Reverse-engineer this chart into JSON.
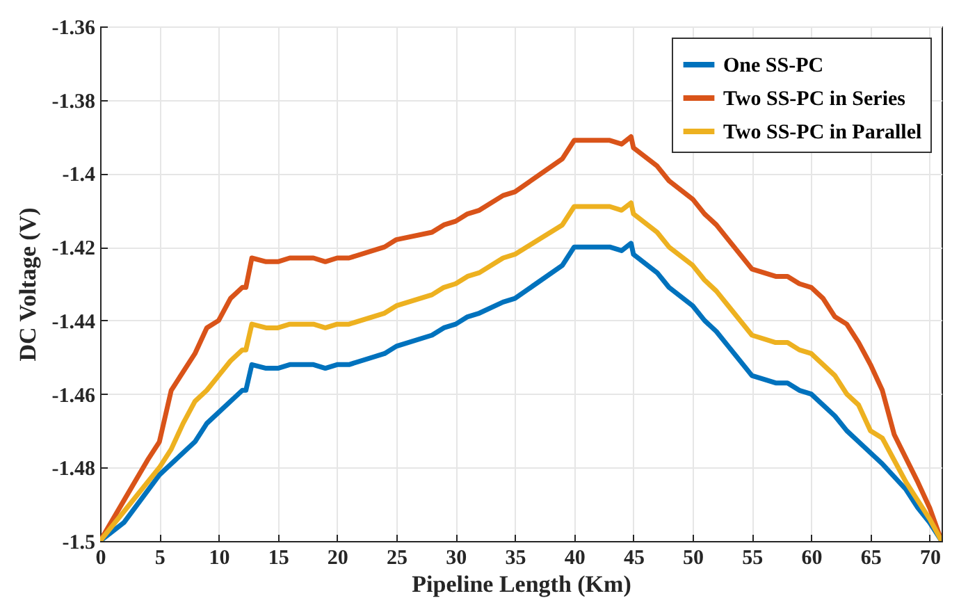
{
  "chart_data": {
    "type": "line",
    "xlabel": "Pipeline Length (Km)",
    "ylabel": "DC Voltage  (V)",
    "xlim": [
      0,
      71
    ],
    "ylim": [
      -1.5,
      -1.36
    ],
    "xticks": [
      0,
      5,
      10,
      15,
      20,
      25,
      30,
      35,
      40,
      45,
      50,
      55,
      60,
      65,
      70
    ],
    "yticks": [
      -1.5,
      -1.48,
      -1.46,
      -1.44,
      -1.42,
      -1.4,
      -1.38,
      -1.36
    ],
    "grid": true,
    "legend": "top right",
    "line_style": "solid",
    "marker": "none",
    "series": [
      {
        "name": "One SS-PC",
        "color": "#0072bd",
        "x": [
          0,
          2,
          5,
          6,
          8,
          9,
          12,
          12.3,
          12.8,
          14,
          15,
          16,
          18,
          19,
          20,
          21,
          24,
          25,
          28,
          29,
          30,
          31,
          32,
          34,
          35,
          39,
          40,
          43,
          44,
          44.8,
          45,
          47,
          48,
          50,
          51,
          52,
          53,
          55,
          57,
          58,
          59,
          60,
          62,
          63,
          64,
          66,
          68,
          69,
          70,
          71
        ],
        "values": [
          -1.5,
          -1.495,
          -1.482,
          -1.479,
          -1.473,
          -1.468,
          -1.459,
          -1.459,
          -1.452,
          -1.453,
          -1.453,
          -1.452,
          -1.452,
          -1.453,
          -1.452,
          -1.452,
          -1.449,
          -1.447,
          -1.444,
          -1.442,
          -1.441,
          -1.439,
          -1.438,
          -1.435,
          -1.434,
          -1.425,
          -1.42,
          -1.42,
          -1.421,
          -1.419,
          -1.422,
          -1.427,
          -1.431,
          -1.436,
          -1.44,
          -1.443,
          -1.447,
          -1.455,
          -1.457,
          -1.457,
          -1.459,
          -1.46,
          -1.466,
          -1.47,
          -1.473,
          -1.479,
          -1.486,
          -1.491,
          -1.495,
          -1.5
        ]
      },
      {
        "name": "Two SS-PC in Series",
        "color": "#d95319",
        "x": [
          0,
          2,
          4,
          5,
          6,
          8,
          9,
          10,
          11,
          12,
          12.3,
          12.8,
          14,
          15,
          16,
          18,
          19,
          20,
          21,
          24,
          25,
          28,
          29,
          30,
          31,
          32,
          34,
          35,
          39,
          40,
          43,
          44,
          44.8,
          45,
          47,
          48,
          50,
          51,
          52,
          53,
          55,
          57,
          58,
          59,
          60,
          61,
          62,
          63,
          64,
          65,
          66,
          67,
          69,
          70,
          71
        ],
        "values": [
          -1.5,
          -1.489,
          -1.478,
          -1.473,
          -1.459,
          -1.449,
          -1.442,
          -1.44,
          -1.434,
          -1.431,
          -1.431,
          -1.423,
          -1.424,
          -1.424,
          -1.423,
          -1.423,
          -1.424,
          -1.423,
          -1.423,
          -1.42,
          -1.418,
          -1.416,
          -1.414,
          -1.413,
          -1.411,
          -1.41,
          -1.406,
          -1.405,
          -1.396,
          -1.391,
          -1.391,
          -1.392,
          -1.39,
          -1.393,
          -1.398,
          -1.402,
          -1.407,
          -1.411,
          -1.414,
          -1.418,
          -1.426,
          -1.428,
          -1.428,
          -1.43,
          -1.431,
          -1.434,
          -1.439,
          -1.441,
          -1.446,
          -1.452,
          -1.459,
          -1.471,
          -1.484,
          -1.491,
          -1.5
        ]
      },
      {
        "name": "Two SS-PC in Parallel",
        "color": "#edb120",
        "x": [
          0,
          2,
          5,
          6,
          7,
          8,
          9,
          10,
          11,
          12,
          12.3,
          12.8,
          14,
          15,
          16,
          18,
          19,
          20,
          21,
          24,
          25,
          28,
          29,
          30,
          31,
          32,
          34,
          35,
          39,
          40,
          43,
          44,
          44.8,
          45,
          47,
          48,
          50,
          51,
          52,
          53,
          55,
          57,
          58,
          59,
          60,
          62,
          63,
          64,
          65,
          66,
          68,
          70,
          71
        ],
        "values": [
          -1.5,
          -1.492,
          -1.48,
          -1.475,
          -1.468,
          -1.462,
          -1.459,
          -1.455,
          -1.451,
          -1.448,
          -1.448,
          -1.441,
          -1.442,
          -1.442,
          -1.441,
          -1.441,
          -1.442,
          -1.441,
          -1.441,
          -1.438,
          -1.436,
          -1.433,
          -1.431,
          -1.43,
          -1.428,
          -1.427,
          -1.423,
          -1.422,
          -1.414,
          -1.409,
          -1.409,
          -1.41,
          -1.408,
          -1.411,
          -1.416,
          -1.42,
          -1.425,
          -1.429,
          -1.432,
          -1.436,
          -1.444,
          -1.446,
          -1.446,
          -1.448,
          -1.449,
          -1.455,
          -1.46,
          -1.463,
          -1.47,
          -1.472,
          -1.484,
          -1.494,
          -1.5
        ]
      }
    ]
  }
}
